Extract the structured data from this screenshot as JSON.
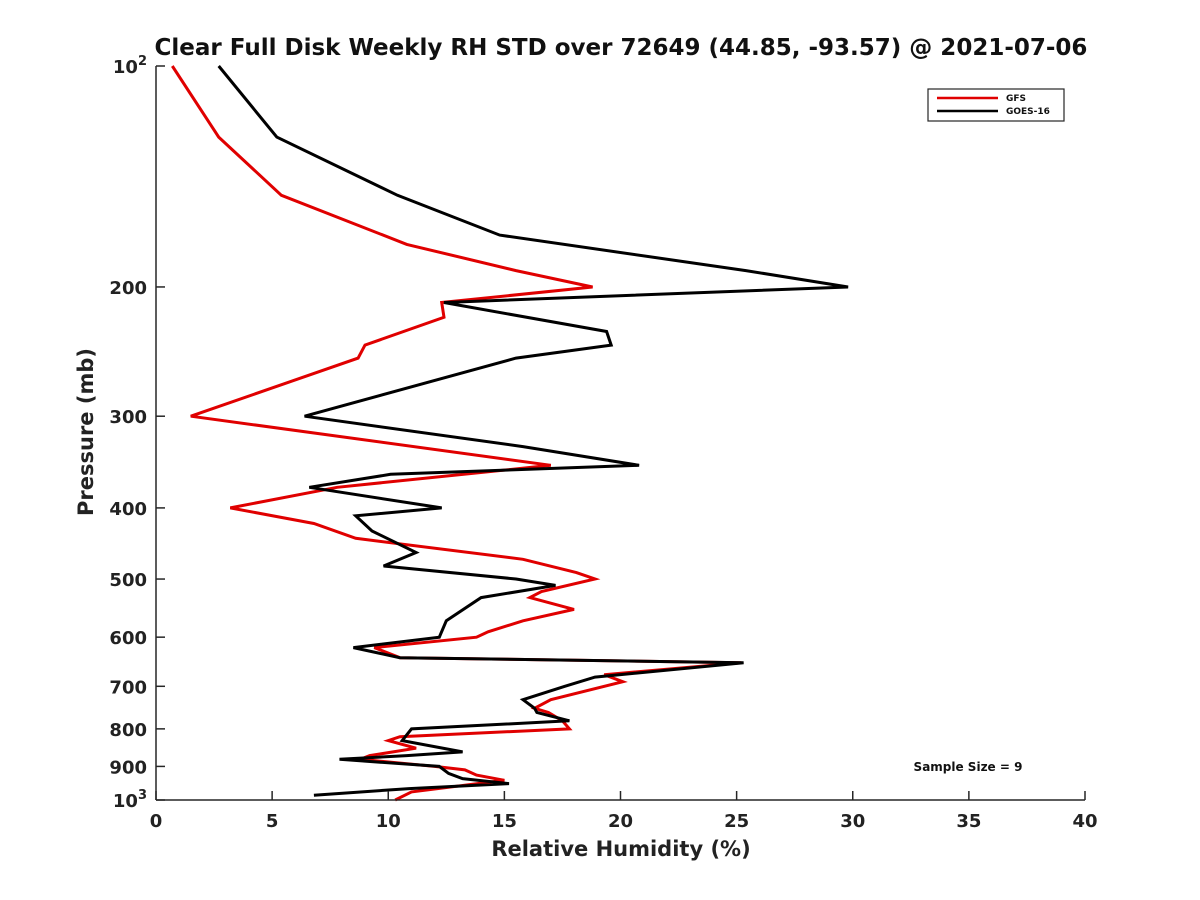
{
  "chart_data": {
    "type": "line",
    "title": "Clear Full Disk Weekly RH STD over 72649 (44.85, -93.57) @ 2021-07-06",
    "xlabel": "Relative Humidity (%)",
    "ylabel": "Pressure (mb)",
    "xlim": [
      0,
      40
    ],
    "ylim": [
      100,
      1000
    ],
    "y_scale": "log",
    "y_reversed": true,
    "x_ticks": [
      0,
      5,
      10,
      15,
      20,
      25,
      30,
      35,
      40
    ],
    "x_tick_labels": [
      "0",
      "5",
      "10",
      "15",
      "20",
      "25",
      "30",
      "35",
      "40"
    ],
    "y_ticks": [
      100,
      200,
      300,
      400,
      500,
      600,
      700,
      800,
      900,
      1000
    ],
    "y_tick_labels": [
      "10^2",
      "200",
      "300",
      "400",
      "500",
      "600",
      "700",
      "800",
      "900",
      "10^3"
    ],
    "grid": false,
    "legend_position": "top-right",
    "annotation": "Sample Size = 9",
    "series": [
      {
        "name": "GFS",
        "color": "#e00000",
        "points": [
          [
            0.7,
            100
          ],
          [
            2.7,
            125
          ],
          [
            5.4,
            150
          ],
          [
            10.8,
            175
          ],
          [
            15.5,
            190
          ],
          [
            18.8,
            200
          ],
          [
            12.3,
            210
          ],
          [
            12.4,
            220
          ],
          [
            9.0,
            240
          ],
          [
            8.7,
            250
          ],
          [
            1.5,
            300
          ],
          [
            17.0,
            350
          ],
          [
            7.8,
            375
          ],
          [
            3.2,
            400
          ],
          [
            6.8,
            420
          ],
          [
            8.6,
            440
          ],
          [
            15.8,
            470
          ],
          [
            18.1,
            490
          ],
          [
            18.9,
            500
          ],
          [
            16.6,
            520
          ],
          [
            16.1,
            530
          ],
          [
            18.0,
            550
          ],
          [
            15.8,
            570
          ],
          [
            14.3,
            590
          ],
          [
            13.8,
            600
          ],
          [
            9.4,
            620
          ],
          [
            10.5,
            640
          ],
          [
            25.2,
            650
          ],
          [
            19.3,
            675
          ],
          [
            20.1,
            690
          ],
          [
            17.0,
            730
          ],
          [
            16.3,
            750
          ],
          [
            16.9,
            760
          ],
          [
            17.5,
            780
          ],
          [
            17.8,
            800
          ],
          [
            10.5,
            820
          ],
          [
            10.0,
            830
          ],
          [
            11.2,
            850
          ],
          [
            9.2,
            870
          ],
          [
            8.8,
            880
          ],
          [
            12.0,
            900
          ],
          [
            13.3,
            910
          ],
          [
            13.8,
            925
          ],
          [
            15.0,
            940
          ],
          [
            11.0,
            975
          ],
          [
            10.3,
            1000
          ]
        ]
      },
      {
        "name": "GOES-16",
        "color": "#000000",
        "points": [
          [
            2.7,
            100
          ],
          [
            5.2,
            125
          ],
          [
            10.4,
            150
          ],
          [
            14.8,
            170
          ],
          [
            25.4,
            190
          ],
          [
            29.8,
            200
          ],
          [
            12.4,
            210
          ],
          [
            19.4,
            230
          ],
          [
            19.6,
            240
          ],
          [
            15.5,
            250
          ],
          [
            6.4,
            300
          ],
          [
            15.8,
            330
          ],
          [
            20.8,
            350
          ],
          [
            10.1,
            360
          ],
          [
            6.6,
            375
          ],
          [
            12.3,
            400
          ],
          [
            8.6,
            410
          ],
          [
            9.3,
            430
          ],
          [
            11.2,
            460
          ],
          [
            9.8,
            480
          ],
          [
            15.5,
            500
          ],
          [
            17.2,
            510
          ],
          [
            14.0,
            530
          ],
          [
            12.5,
            570
          ],
          [
            12.2,
            600
          ],
          [
            8.5,
            620
          ],
          [
            10.5,
            640
          ],
          [
            25.3,
            650
          ],
          [
            18.9,
            680
          ],
          [
            17.6,
            700
          ],
          [
            15.8,
            730
          ],
          [
            16.3,
            750
          ],
          [
            16.4,
            760
          ],
          [
            17.8,
            780
          ],
          [
            11.0,
            800
          ],
          [
            10.6,
            830
          ],
          [
            13.2,
            860
          ],
          [
            10.8,
            870
          ],
          [
            7.9,
            880
          ],
          [
            12.2,
            900
          ],
          [
            12.6,
            920
          ],
          [
            13.2,
            935
          ],
          [
            15.2,
            950
          ],
          [
            10.9,
            965
          ],
          [
            6.8,
            985
          ]
        ]
      }
    ]
  }
}
